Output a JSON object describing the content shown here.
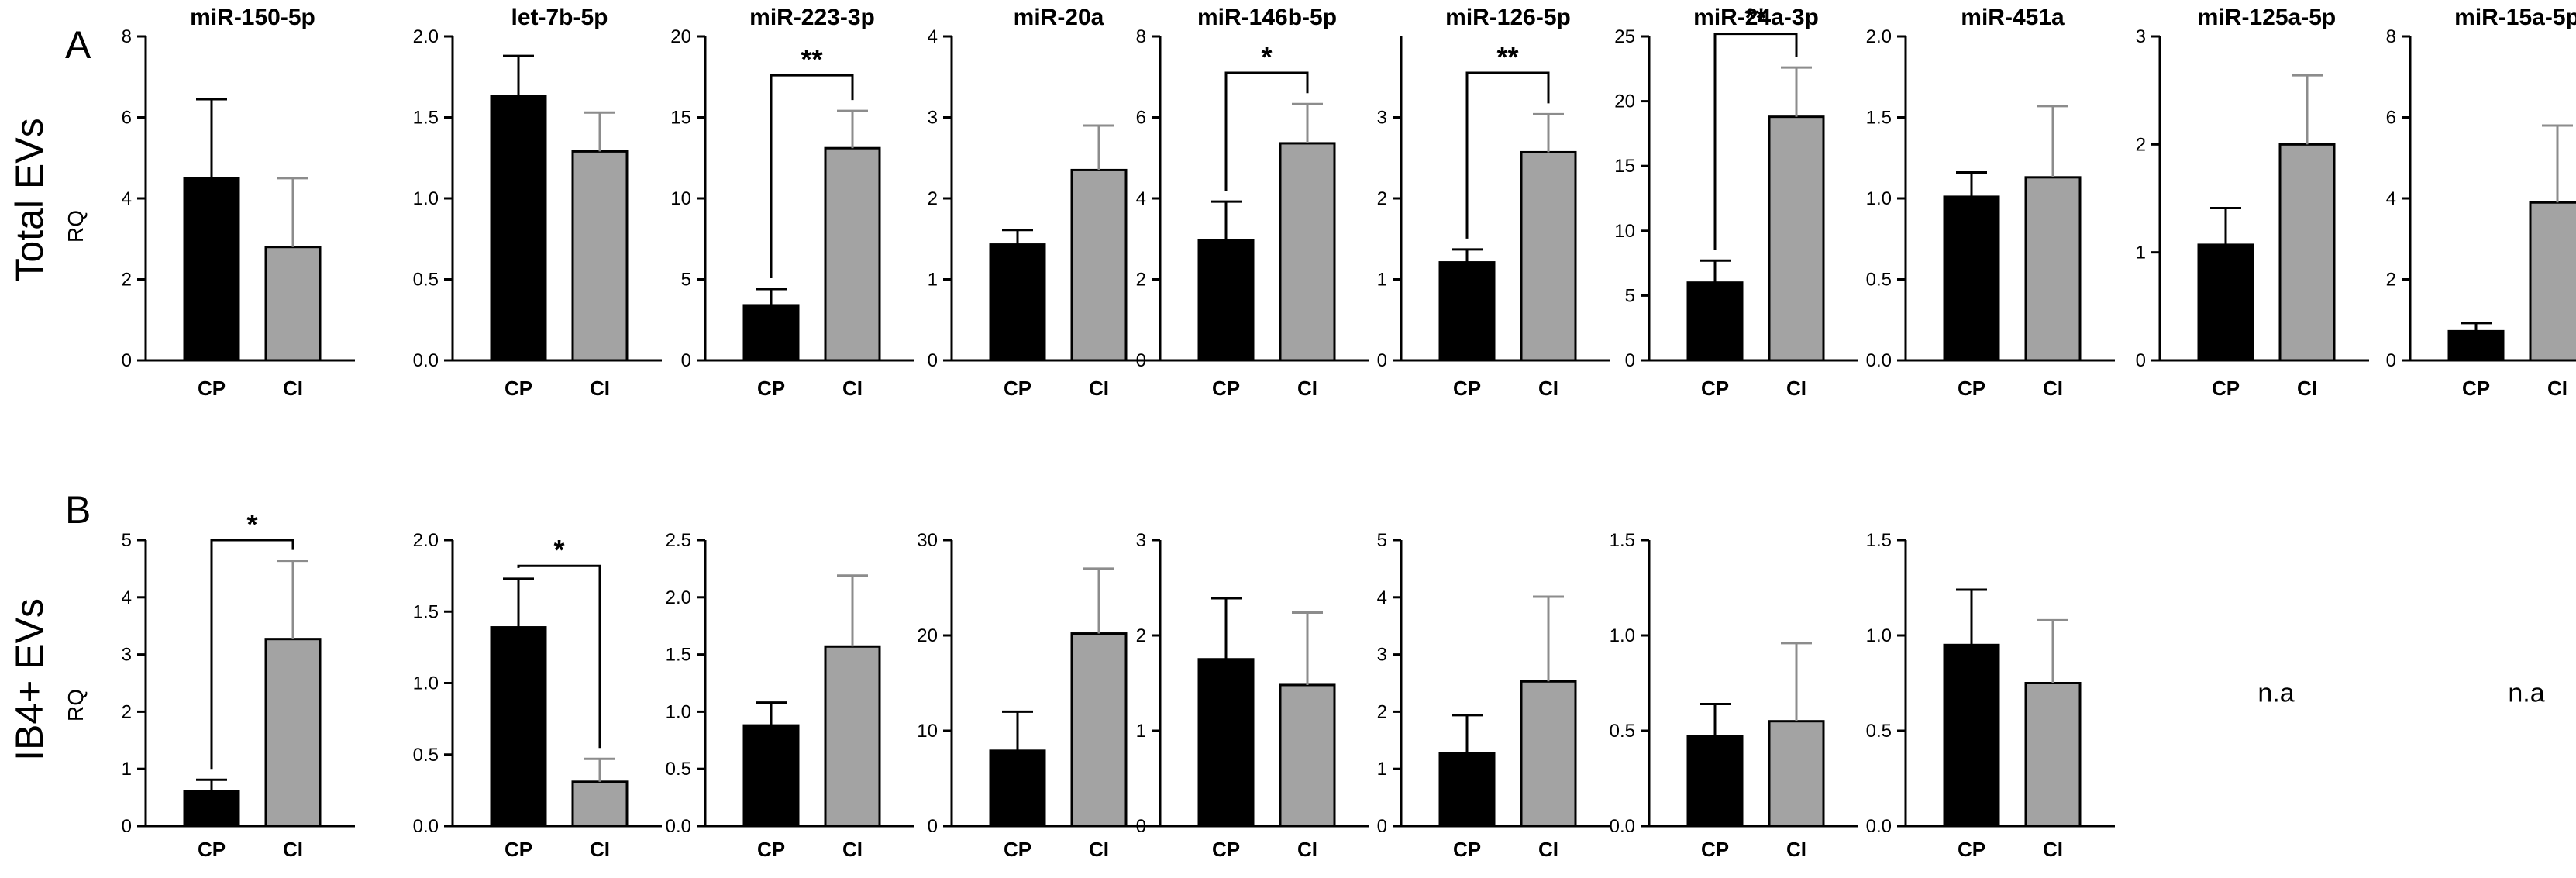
{
  "figure": {
    "x_categories": [
      "CP",
      "CI"
    ],
    "colors": {
      "CP": "#000000",
      "CI": "#a3a3a3",
      "axis": "#000000"
    }
  },
  "chart_data": [
    {
      "type": "bar",
      "panel": "A",
      "row_label": "Total EVs",
      "ylabel": "RQ",
      "charts": [
        {
          "title": "miR-150-5p",
          "ylim": [
            0,
            8
          ],
          "ticks": [
            "0",
            "2",
            "4",
            "6",
            "8"
          ],
          "categories": [
            "CP",
            "CI"
          ],
          "values": [
            4.5,
            2.8
          ],
          "errors": [
            1.95,
            1.7
          ]
        },
        {
          "title": "let-7b-5p",
          "ylim": [
            0,
            2
          ],
          "ticks": [
            "0.0",
            "0.5",
            "1.0",
            "1.5",
            "2.0"
          ],
          "categories": [
            "CP",
            "CI"
          ],
          "values": [
            1.63,
            1.29
          ],
          "errors": [
            0.25,
            0.24
          ]
        },
        {
          "title": "miR-223-3p",
          "ylim": [
            0,
            20
          ],
          "ticks": [
            "0",
            "5",
            "10",
            "15",
            "20"
          ],
          "categories": [
            "CP",
            "CI"
          ],
          "values": [
            3.4,
            13.1
          ],
          "errors": [
            1.0,
            2.3
          ],
          "significance": {
            "label": "**",
            "yvalue": 17.6
          }
        },
        {
          "title": "miR-20a",
          "ylim": [
            0,
            4
          ],
          "ticks": [
            "0",
            "1",
            "2",
            "3",
            "4"
          ],
          "categories": [
            "CP",
            "CI"
          ],
          "values": [
            1.43,
            2.35
          ],
          "errors": [
            0.18,
            0.55
          ]
        },
        {
          "title": "miR-146b-5p",
          "ylim": [
            0,
            8
          ],
          "ticks": [
            "0",
            "2",
            "4",
            "6",
            "8"
          ],
          "categories": [
            "CP",
            "CI"
          ],
          "values": [
            2.97,
            5.36
          ],
          "errors": [
            0.95,
            0.97
          ],
          "significance": {
            "label": "*",
            "yvalue": 7.1
          }
        },
        {
          "title": "miR-126-5p",
          "ylim": [
            0,
            4
          ],
          "ticks": [
            "0",
            "1",
            "2",
            "3"
          ],
          "categories": [
            "CP",
            "CI"
          ],
          "values": [
            1.21,
            2.57
          ],
          "errors": [
            0.16,
            0.47
          ],
          "significance": {
            "label": "**",
            "yvalue": 3.55
          }
        },
        {
          "title": "miR-24a-3p",
          "ylim": [
            0,
            25
          ],
          "ticks": [
            "0",
            "5",
            "10",
            "15",
            "20",
            "25"
          ],
          "categories": [
            "CP",
            "CI"
          ],
          "values": [
            6.0,
            18.8
          ],
          "errors": [
            1.7,
            3.8
          ],
          "significance": {
            "label": "**",
            "yvalue": 25.2
          }
        },
        {
          "title": "miR-451a",
          "ylim": [
            0,
            2
          ],
          "ticks": [
            "0.0",
            "0.5",
            "1.0",
            "1.5",
            "2.0"
          ],
          "categories": [
            "CP",
            "CI"
          ],
          "values": [
            1.01,
            1.13
          ],
          "errors": [
            0.15,
            0.44
          ]
        },
        {
          "title": "miR-125a-5p",
          "ylim": [
            0,
            3
          ],
          "ticks": [
            "0",
            "1",
            "2",
            "3"
          ],
          "categories": [
            "CP",
            "CI"
          ],
          "values": [
            1.07,
            2.0
          ],
          "errors": [
            0.34,
            0.64
          ]
        },
        {
          "title": "miR-15a-5p",
          "ylim": [
            0,
            8
          ],
          "ticks": [
            "0",
            "2",
            "4",
            "6",
            "8"
          ],
          "categories": [
            "CP",
            "CI"
          ],
          "values": [
            0.72,
            3.9
          ],
          "errors": [
            0.2,
            1.9
          ]
        }
      ]
    },
    {
      "type": "bar",
      "panel": "B",
      "row_label": "IB4+ EVs",
      "ylabel": "RQ",
      "charts": [
        {
          "title": "miR-150-5p",
          "ylim": [
            0,
            5
          ],
          "ticks": [
            "0",
            "1",
            "2",
            "3",
            "4",
            "5"
          ],
          "categories": [
            "CP",
            "CI"
          ],
          "values": [
            0.61,
            3.27
          ],
          "errors": [
            0.2,
            1.37
          ],
          "significance": {
            "label": "*",
            "yvalue": 5.0
          }
        },
        {
          "title": "let-7b-5p",
          "ylim": [
            0,
            2
          ],
          "ticks": [
            "0.0",
            "0.5",
            "1.0",
            "1.5",
            "2.0"
          ],
          "categories": [
            "CP",
            "CI"
          ],
          "values": [
            1.39,
            0.31
          ],
          "errors": [
            0.34,
            0.16
          ],
          "significance": {
            "label": "*",
            "yvalue": 1.82
          }
        },
        {
          "title": "miR-223-3p",
          "ylim": [
            0,
            2.5
          ],
          "ticks": [
            "0.0",
            "0.5",
            "1.0",
            "1.5",
            "2.0",
            "2.5"
          ],
          "categories": [
            "CP",
            "CI"
          ],
          "values": [
            0.88,
            1.57
          ],
          "errors": [
            0.2,
            0.62
          ]
        },
        {
          "title": "miR-20a",
          "ylim": [
            0,
            30
          ],
          "ticks": [
            "0",
            "10",
            "20",
            "30"
          ],
          "categories": [
            "CP",
            "CI"
          ],
          "values": [
            7.9,
            20.2
          ],
          "errors": [
            4.1,
            6.8
          ]
        },
        {
          "title": "miR-146b-5p",
          "ylim": [
            0,
            3
          ],
          "ticks": [
            "0",
            "1",
            "2",
            "3"
          ],
          "categories": [
            "CP",
            "CI"
          ],
          "values": [
            1.75,
            1.48
          ],
          "errors": [
            0.64,
            0.76
          ]
        },
        {
          "title": "miR-126-5p",
          "ylim": [
            0,
            5
          ],
          "ticks": [
            "0",
            "1",
            "2",
            "3",
            "4",
            "5"
          ],
          "categories": [
            "CP",
            "CI"
          ],
          "values": [
            1.27,
            2.53
          ],
          "errors": [
            0.67,
            1.48
          ]
        },
        {
          "title": "miR-24a-3p",
          "ylim": [
            0,
            1.5
          ],
          "ticks": [
            "0.0",
            "0.5",
            "1.0",
            "1.5"
          ],
          "categories": [
            "CP",
            "CI"
          ],
          "values": [
            0.47,
            0.55
          ],
          "errors": [
            0.17,
            0.41
          ]
        },
        {
          "title": "miR-451a",
          "ylim": [
            0,
            1.5
          ],
          "ticks": [
            "0.0",
            "0.5",
            "1.0",
            "1.5"
          ],
          "categories": [
            "CP",
            "CI"
          ],
          "values": [
            0.95,
            0.75
          ],
          "errors": [
            0.29,
            0.33
          ]
        },
        {
          "title": "miR-125a-5p",
          "na_label": "n.a"
        },
        {
          "title": "miR-15a-5p",
          "na_label": "n.a"
        }
      ]
    }
  ]
}
